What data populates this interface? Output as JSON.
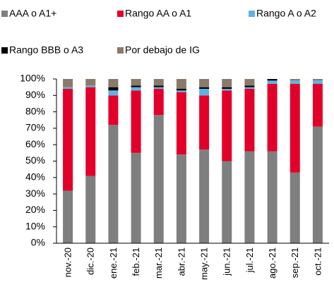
{
  "chart_data": {
    "type": "stacked_bar",
    "categories": [
      "nov.-20",
      "dic.-20",
      "ene.-21",
      "feb.-21",
      "mar.-21",
      "abr.-21",
      "may.-21",
      "jun.-21",
      "jul.-21",
      "ago.-21",
      "sep.-21",
      "oct.-21"
    ],
    "series": [
      {
        "name": "AAA o A1+",
        "color": "#7f7f7f",
        "values": [
          32,
          41,
          72,
          55,
          78,
          54,
          57,
          50,
          56,
          56,
          43,
          71
        ]
      },
      {
        "name": "Rango AA o A1",
        "color": "#e2002a",
        "values": [
          62,
          54,
          18,
          38,
          16,
          38,
          33,
          43,
          38,
          41,
          54,
          26
        ]
      },
      {
        "name": "Rango A o A2",
        "color": "#5fb3e4",
        "values": [
          1,
          1,
          3,
          2,
          1,
          1,
          4,
          1,
          1,
          2,
          2,
          2
        ]
      },
      {
        "name": "Rango BBB o A3",
        "color": "#000000",
        "values": [
          0,
          0,
          2,
          1,
          1,
          1,
          1,
          1,
          1,
          1,
          0,
          0
        ]
      },
      {
        "name": "Por debajo de IG",
        "color": "#8a7a69",
        "values": [
          5,
          4,
          5,
          4,
          4,
          6,
          5,
          5,
          4,
          0,
          1,
          1
        ]
      }
    ],
    "ylim": [
      0,
      100
    ],
    "yticks": [
      {
        "value": 0,
        "label": "0%"
      },
      {
        "value": 10,
        "label": "10%"
      },
      {
        "value": 20,
        "label": "20%"
      },
      {
        "value": 30,
        "label": "30%"
      },
      {
        "value": 40,
        "label": "40%"
      },
      {
        "value": 50,
        "label": "50%"
      },
      {
        "value": 60,
        "label": "60%"
      },
      {
        "value": 70,
        "label": "70%"
      },
      {
        "value": 80,
        "label": "80%"
      },
      {
        "value": 90,
        "label": "90%"
      },
      {
        "value": 100,
        "label": "100%"
      }
    ],
    "legend": "top"
  }
}
